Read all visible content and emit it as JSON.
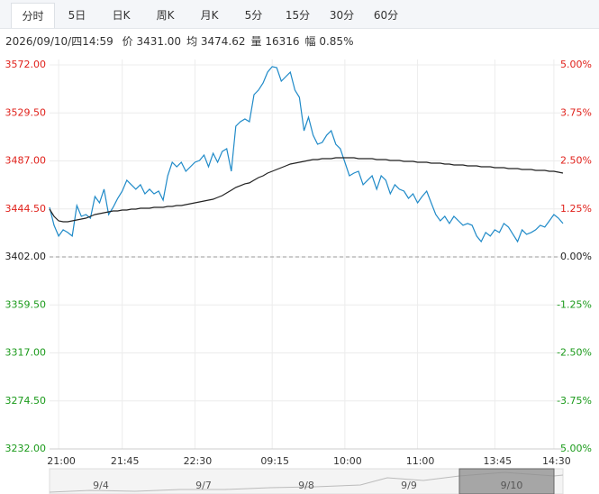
{
  "tabs": [
    "分时",
    "5日",
    "日K",
    "周K",
    "月K",
    "5分",
    "15分",
    "30分",
    "60分"
  ],
  "info": {
    "time": "2026/09/10/四14:59",
    "items": [
      "价 3431.00",
      "均 3474.62",
      "量 16316",
      "幅 0.85%"
    ]
  },
  "navigator": {
    "dates": [
      "9/4",
      "9/7",
      "9/8",
      "9/9",
      "9/10"
    ]
  },
  "chart_data": {
    "type": "line",
    "categories": [
      null,
      null,
      "21:00",
      null,
      null,
      null,
      null,
      null,
      null,
      null,
      null,
      null,
      null,
      null,
      null,
      null,
      "21:45",
      null,
      null,
      null,
      null,
      null,
      null,
      null,
      null,
      null,
      null,
      null,
      null,
      null,
      null,
      null,
      "22:30",
      null,
      null,
      null,
      null,
      null,
      null,
      null,
      null,
      null,
      null,
      null,
      null,
      null,
      null,
      null,
      null,
      "09:15",
      null,
      null,
      null,
      null,
      null,
      null,
      null,
      null,
      null,
      null,
      null,
      null,
      null,
      null,
      null,
      "10:00",
      null,
      null,
      null,
      null,
      null,
      null,
      null,
      null,
      null,
      null,
      null,
      null,
      null,
      null,
      null,
      "11:00",
      null,
      null,
      null,
      null,
      null,
      null,
      null,
      null,
      null,
      null,
      null,
      null,
      null,
      null,
      null,
      null,
      "13:45",
      null,
      null,
      null,
      null,
      null,
      null,
      null,
      null,
      null,
      null,
      null,
      null,
      "14:30",
      null,
      null
    ],
    "series": [
      {
        "color": "#1f8ac8",
        "values": [
          3445.9,
          3430.0,
          3420.4,
          3426.0,
          3423.6,
          3420.4,
          3447.5,
          3437.9,
          3439.5,
          3436.3,
          3455.5,
          3449.9,
          3461.9,
          3439.5,
          3445.9,
          3453.9,
          3460.3,
          3469.9,
          3465.9,
          3461.9,
          3465.9,
          3457.9,
          3461.9,
          3457.9,
          3460.3,
          3452.3,
          3473.8,
          3485.8,
          3481.8,
          3485.8,
          3477.8,
          3481.8,
          3485.8,
          3487.4,
          3492.2,
          3481.8,
          3493.8,
          3485.8,
          3495.4,
          3497.8,
          3477.8,
          3517.7,
          3521.7,
          3524.1,
          3521.7,
          3545.7,
          3549.7,
          3556.0,
          3565.6,
          3570.5,
          3569.6,
          3557.6,
          3561.6,
          3565.6,
          3549.7,
          3543.3,
          3513.7,
          3525.7,
          3509.8,
          3501.8,
          3503.4,
          3509.8,
          3513.7,
          3501.8,
          3497.8,
          3485.8,
          3473.8,
          3476.2,
          3477.8,
          3465.9,
          3469.9,
          3473.8,
          3461.9,
          3473.8,
          3469.9,
          3457.9,
          3465.9,
          3461.9,
          3460.3,
          3453.9,
          3457.9,
          3449.9,
          3455.5,
          3460.3,
          3449.9,
          3439.5,
          3433.9,
          3437.9,
          3431.6,
          3437.9,
          3433.9,
          3430.0,
          3431.6,
          3430.0,
          3420.4,
          3415.6,
          3423.6,
          3420.4,
          3426.0,
          3423.6,
          3431.6,
          3428.4,
          3422.0,
          3415.6,
          3426.0,
          3422.0,
          3423.6,
          3426.0,
          3430.0,
          3428.4,
          3433.9,
          3439.5,
          3436.3,
          3431.6
        ]
      },
      {
        "color": "#222222",
        "values": [
          3444.3,
          3437.9,
          3433.9,
          3433.1,
          3433.1,
          3433.9,
          3434.7,
          3435.5,
          3436.3,
          3437.9,
          3439.5,
          3440.3,
          3441.1,
          3441.9,
          3442.7,
          3442.7,
          3443.5,
          3443.5,
          3444.3,
          3444.3,
          3445.1,
          3445.1,
          3445.1,
          3445.9,
          3445.9,
          3445.9,
          3446.7,
          3446.7,
          3447.5,
          3447.5,
          3448.3,
          3449.1,
          3449.9,
          3450.7,
          3451.5,
          3452.3,
          3453.1,
          3454.7,
          3456.3,
          3458.7,
          3461.1,
          3463.5,
          3465.1,
          3466.7,
          3467.5,
          3469.9,
          3472.2,
          3473.8,
          3476.2,
          3477.8,
          3479.4,
          3481.0,
          3482.6,
          3484.2,
          3485.0,
          3485.8,
          3486.6,
          3487.4,
          3488.2,
          3488.2,
          3489.0,
          3489.0,
          3489.0,
          3489.8,
          3489.8,
          3489.8,
          3489.8,
          3489.8,
          3489.0,
          3489.0,
          3489.0,
          3489.0,
          3488.2,
          3488.2,
          3488.2,
          3487.4,
          3487.4,
          3487.4,
          3486.6,
          3486.6,
          3486.6,
          3485.8,
          3485.8,
          3485.8,
          3485.0,
          3485.0,
          3485.0,
          3484.2,
          3484.2,
          3483.4,
          3483.4,
          3483.4,
          3482.6,
          3482.6,
          3482.6,
          3481.8,
          3481.8,
          3481.8,
          3481.0,
          3481.0,
          3481.0,
          3480.2,
          3480.2,
          3480.2,
          3479.4,
          3479.4,
          3479.4,
          3478.6,
          3478.6,
          3478.6,
          3477.8,
          3477.8,
          3477.0,
          3476.2
        ]
      }
    ],
    "ylim": [
      3232,
      3572
    ],
    "yticks": [
      {
        "value": 3572,
        "label": "3572.00"
      },
      {
        "value": 3529.5,
        "label": "3529.50"
      },
      {
        "value": 3487,
        "label": "3487.00"
      },
      {
        "value": 3444.5,
        "label": "3444.50"
      },
      {
        "value": 3402,
        "label": "3402.00"
      },
      {
        "value": 3359.5,
        "label": "3359.50"
      },
      {
        "value": 3317,
        "label": "3317.00"
      },
      {
        "value": 3274.5,
        "label": "3274.50"
      },
      {
        "value": 3232,
        "label": "3232.00"
      }
    ],
    "y2lim": [
      -5,
      5
    ],
    "y2ticks": [
      {
        "value": 5,
        "label": "5.00%"
      },
      {
        "value": 3.75,
        "label": "3.75%"
      },
      {
        "value": 2.5,
        "label": "2.50%"
      },
      {
        "value": 1.25,
        "label": "1.25%"
      },
      {
        "value": 0,
        "label": "0.00%"
      },
      {
        "value": -1.25,
        "label": "-1.25%"
      },
      {
        "value": -2.5,
        "label": "-2.50%"
      },
      {
        "value": -3.75,
        "label": "-3.75%"
      },
      {
        "value": -5,
        "label": "-5.00%"
      }
    ],
    "reference_line": 3402,
    "grid": true
  }
}
